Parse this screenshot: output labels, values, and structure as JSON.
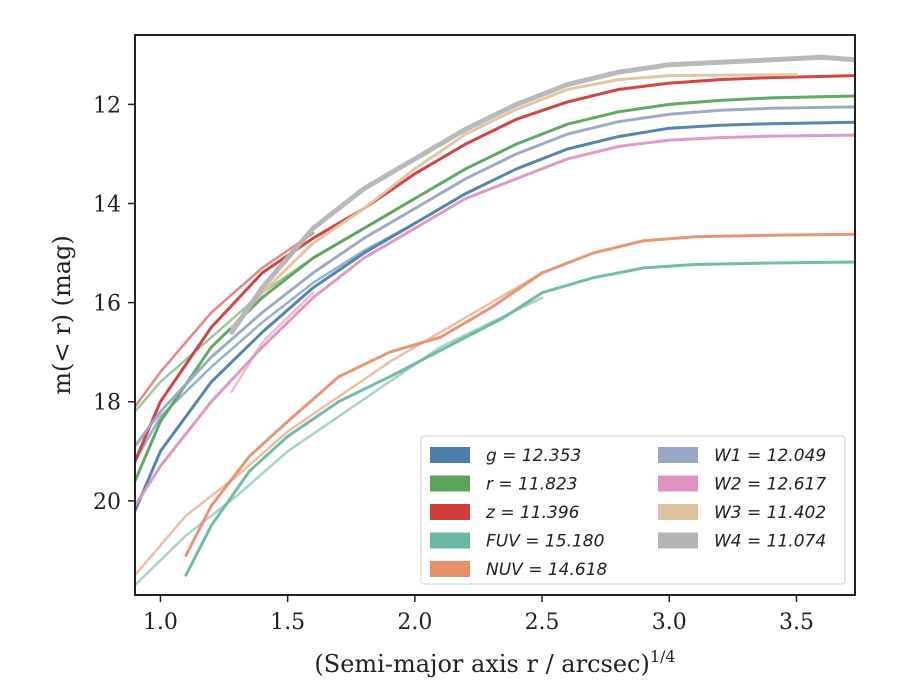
{
  "chart_data": {
    "type": "line",
    "xlabel": "(Semi-major axis r / arcsec)",
    "xlabel_exponent": "1/4",
    "ylabel": "m(< r) (mag)",
    "xlim": [
      0.9,
      3.73
    ],
    "ylim": [
      21.9,
      10.6
    ],
    "y_inverted": true,
    "x_ticks": [
      "1.0",
      "1.5",
      "2.0",
      "2.5",
      "3.0",
      "3.5"
    ],
    "y_ticks": [
      "12",
      "14",
      "16",
      "18",
      "20"
    ],
    "x_tick_values": [
      1.0,
      1.5,
      2.0,
      2.5,
      3.0,
      3.5
    ],
    "y_tick_values": [
      12,
      14,
      16,
      18,
      20
    ],
    "grid": false,
    "legend_position": "lower-right",
    "series": [
      {
        "name": "g = 12.353",
        "color": "#4c7fad",
        "width": 3,
        "x": [
          0.9,
          1.0,
          1.2,
          1.4,
          1.6,
          1.8,
          2.0,
          2.2,
          2.4,
          2.6,
          2.8,
          3.0,
          3.2,
          3.4,
          3.73
        ],
        "y": [
          20.2,
          19.0,
          17.6,
          16.6,
          15.7,
          15.0,
          14.4,
          13.8,
          13.3,
          12.9,
          12.65,
          12.48,
          12.42,
          12.39,
          12.36
        ],
        "x2": [
          0.9,
          1.0,
          1.2,
          1.4,
          1.6,
          1.8,
          2.0
        ],
        "y2": [
          19.2,
          18.3,
          17.3,
          16.4,
          15.6,
          14.95,
          14.4
        ]
      },
      {
        "name": "r = 11.823",
        "color": "#5aa55a",
        "width": 3,
        "x": [
          0.9,
          1.0,
          1.2,
          1.4,
          1.6,
          1.8,
          2.0,
          2.2,
          2.4,
          2.6,
          2.8,
          3.0,
          3.2,
          3.4,
          3.73
        ],
        "y": [
          19.6,
          18.4,
          16.9,
          15.9,
          15.1,
          14.5,
          13.9,
          13.3,
          12.8,
          12.4,
          12.15,
          12.0,
          11.92,
          11.87,
          11.83
        ],
        "x2": [
          0.9,
          1.0,
          1.2,
          1.4,
          1.6,
          1.8,
          2.0
        ],
        "y2": [
          18.2,
          17.6,
          16.7,
          15.8,
          15.1,
          14.5,
          13.9
        ]
      },
      {
        "name": "z = 11.396",
        "color": "#d03b3b",
        "width": 3,
        "x": [
          0.9,
          1.0,
          1.2,
          1.4,
          1.6,
          1.8,
          2.0,
          2.2,
          2.4,
          2.6,
          2.8,
          3.0,
          3.2,
          3.4,
          3.73
        ],
        "y": [
          19.2,
          18.0,
          16.5,
          15.4,
          14.7,
          14.1,
          13.4,
          12.8,
          12.3,
          11.95,
          11.7,
          11.57,
          11.5,
          11.46,
          11.42
        ],
        "x2": [
          0.9,
          1.0,
          1.2,
          1.4,
          1.6
        ],
        "y2": [
          18.1,
          17.4,
          16.2,
          15.3,
          14.6
        ]
      },
      {
        "name": "FUV = 15.180",
        "color": "#6bb8a5",
        "width": 3,
        "x": [
          1.1,
          1.2,
          1.35,
          1.5,
          1.7,
          1.9,
          2.05,
          2.2,
          2.35,
          2.5,
          2.7,
          2.9,
          3.1,
          3.4,
          3.73
        ],
        "y": [
          21.5,
          20.5,
          19.4,
          18.7,
          18.0,
          17.5,
          17.1,
          16.7,
          16.3,
          15.8,
          15.5,
          15.3,
          15.23,
          15.2,
          15.18
        ],
        "x2": [
          0.9,
          1.1,
          1.3,
          1.5,
          1.7,
          1.9,
          2.1,
          2.3,
          2.5
        ],
        "y2": [
          21.7,
          20.7,
          19.9,
          19.0,
          18.3,
          17.6,
          16.9,
          16.4,
          15.9
        ]
      },
      {
        "name": "NUV = 14.618",
        "color": "#e8906a",
        "width": 3,
        "x": [
          1.1,
          1.2,
          1.35,
          1.5,
          1.7,
          1.9,
          2.1,
          2.3,
          2.5,
          2.7,
          2.9,
          3.1,
          3.4,
          3.73
        ],
        "y": [
          21.1,
          20.1,
          19.1,
          18.4,
          17.5,
          17.0,
          16.7,
          16.1,
          15.4,
          15.0,
          14.75,
          14.67,
          14.64,
          14.62
        ],
        "x2": [
          0.9,
          1.1,
          1.3,
          1.5,
          1.7,
          1.9,
          2.1,
          2.3,
          2.5
        ],
        "y2": [
          21.5,
          20.3,
          19.5,
          18.6,
          17.9,
          17.2,
          16.6,
          16.0,
          15.4
        ]
      },
      {
        "name": "W1 = 12.049",
        "color": "#98a6c8",
        "width": 3,
        "x": [
          0.9,
          1.0,
          1.2,
          1.4,
          1.6,
          1.8,
          2.0,
          2.2,
          2.4,
          2.6,
          2.8,
          3.0,
          3.2,
          3.4,
          3.73
        ],
        "y": [
          18.9,
          18.2,
          17.1,
          16.2,
          15.4,
          14.7,
          14.1,
          13.5,
          13.0,
          12.6,
          12.35,
          12.2,
          12.12,
          12.08,
          12.05
        ]
      },
      {
        "name": "W2 = 12.617",
        "color": "#df93c2",
        "width": 3,
        "x": [
          0.9,
          1.0,
          1.2,
          1.4,
          1.6,
          1.8,
          2.0,
          2.2,
          2.4,
          2.6,
          2.8,
          3.0,
          3.2,
          3.4,
          3.73
        ],
        "y": [
          20.1,
          19.3,
          18.0,
          16.9,
          15.9,
          15.1,
          14.5,
          13.9,
          13.5,
          13.1,
          12.85,
          12.72,
          12.67,
          12.64,
          12.62
        ],
        "x2": [
          1.28,
          1.4,
          1.6
        ],
        "y2": [
          17.8,
          16.8,
          15.8
        ]
      },
      {
        "name": "W3 = 11.402",
        "color": "#e0c4a0",
        "width": 3,
        "x": [
          1.28,
          1.4,
          1.6,
          1.8,
          2.0,
          2.2,
          2.4,
          2.6,
          2.8,
          3.0,
          3.2,
          3.5
        ],
        "y": [
          16.5,
          15.8,
          14.8,
          14.1,
          13.3,
          12.6,
          12.1,
          11.7,
          11.5,
          11.42,
          11.41,
          11.4
        ]
      },
      {
        "name": "W4 = 11.074",
        "color": "#b5b5b5",
        "width": 5,
        "x": [
          1.28,
          1.4,
          1.6,
          1.8,
          2.0,
          2.2,
          2.4,
          2.6,
          2.8,
          3.0,
          3.2,
          3.4,
          3.6,
          3.73
        ],
        "y": [
          16.6,
          15.7,
          14.5,
          13.7,
          13.1,
          12.5,
          12.0,
          11.6,
          11.35,
          11.2,
          11.15,
          11.1,
          11.05,
          11.1
        ]
      }
    ]
  }
}
